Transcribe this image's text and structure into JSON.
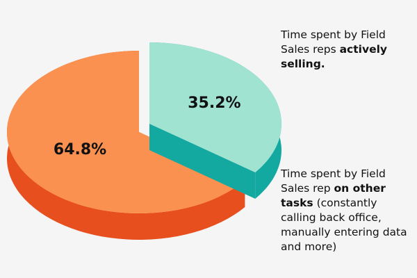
{
  "chart_data": {
    "type": "pie",
    "title": "",
    "slices": [
      {
        "value": 35.2,
        "label": "35.2%",
        "color": "#a0e3d0",
        "side_color": "#14a9a0",
        "legend": {
          "prefix": "Time spent by Field Sales reps ",
          "bold": "actively selling.",
          "suffix": ""
        }
      },
      {
        "value": 64.8,
        "label": "64.8%",
        "color": "#fb9150",
        "side_color": "#e84f1e",
        "legend": {
          "prefix": "Time spent by Field Sales rep ",
          "bold": "on other tasks",
          "suffix": " (constantly calling back office, manually entering data and more)"
        }
      }
    ],
    "exploded_slice": 0,
    "legend_position": "right"
  }
}
